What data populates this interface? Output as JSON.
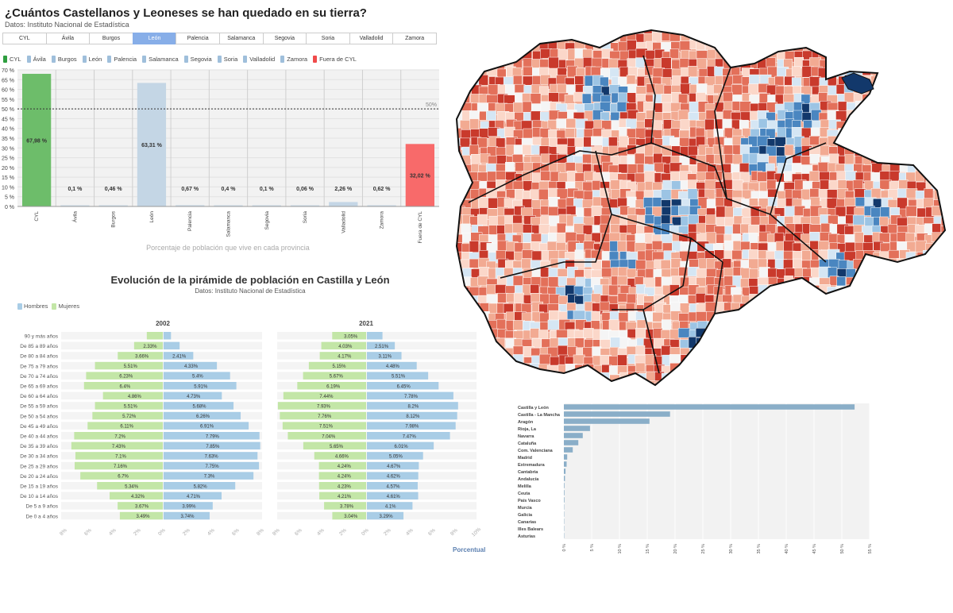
{
  "top": {
    "title": "¿Cuántos Castellanos y Leoneses se han quedado en su tierra?",
    "source": "Datos: Instituto Nacional de Estadística",
    "tabs": [
      "CYL",
      "Ávila",
      "Burgos",
      "León",
      "Palencia",
      "Salamanca",
      "Segovia",
      "Soria",
      "Valladolid",
      "Zamora"
    ],
    "active_tab": 3,
    "legend": [
      {
        "label": "CYL",
        "color": "#2e9e3f"
      },
      {
        "label": "Ávila",
        "color": "#9fbfdb"
      },
      {
        "label": "Burgos",
        "color": "#9fbfdb"
      },
      {
        "label": "León",
        "color": "#9fbfdb"
      },
      {
        "label": "Palencia",
        "color": "#9fbfdb"
      },
      {
        "label": "Salamanca",
        "color": "#9fbfdb"
      },
      {
        "label": "Segovia",
        "color": "#9fbfdb"
      },
      {
        "label": "Soria",
        "color": "#9fbfdb"
      },
      {
        "label": "Valladolid",
        "color": "#9fbfdb"
      },
      {
        "label": "Zamora",
        "color": "#9fbfdb"
      },
      {
        "label": "Fuera de CYL",
        "color": "#f04b4b"
      }
    ]
  },
  "pyramid": {
    "title": "Evolución de la pirámide de población en Castilla y León",
    "source": "Datos: Instituto Nacional de Estadística",
    "legend": [
      {
        "label": "Hombres",
        "color": "#a9cde6"
      },
      {
        "label": "Mujeres",
        "color": "#c3e6a7"
      }
    ],
    "logo": "Porcentual"
  },
  "map": {
    "colors": {
      "deep_red": "#c93a2c",
      "red": "#e3705a",
      "light_red": "#f2aa92",
      "pale_red": "#fbd7c9",
      "white": "#f5f5f5",
      "pale_blue": "#d5e6f4",
      "light_blue": "#9cc4e4",
      "blue": "#4a86c0",
      "dark_blue": "#12386b"
    }
  },
  "chart_data": [
    {
      "type": "bar",
      "title": "",
      "xlabel": "Porcentaje de población que vive en cada provincia",
      "ylabel": "",
      "categories": [
        "CYL",
        "Ávila",
        "Burgos",
        "León",
        "Palencia",
        "Salamanca",
        "Segovia",
        "Soria",
        "Valladolid",
        "Zamora",
        "Fuera de CYL"
      ],
      "values": [
        67.98,
        0.1,
        0.46,
        63.31,
        0.67,
        0.4,
        0.1,
        0.06,
        2.26,
        0.62,
        32.02
      ],
      "value_labels": [
        "67,98 %",
        "0,1 %",
        "0,46 %",
        "63,31 %",
        "0,67 %",
        "0,4 %",
        "0,1 %",
        "0,06 %",
        "2,26 %",
        "0,62 %",
        "32,02 %"
      ],
      "colors": [
        "#6dbd6a",
        "#c9d9e6",
        "#c9d9e6",
        "#c4d6e5",
        "#c9d9e6",
        "#c9d9e6",
        "#c9d9e6",
        "#c9d9e6",
        "#c4d6e5",
        "#c9d9e6",
        "#f86a6a"
      ],
      "ylim": [
        0,
        70
      ],
      "yticks": [
        "0 %",
        "5 %",
        "10 %",
        "15 %",
        "20 %",
        "25 %",
        "30 %",
        "35 %",
        "40 %",
        "45 %",
        "50 %",
        "55 %",
        "60 %",
        "65 %",
        "70 %"
      ],
      "reference_line": {
        "value": 50,
        "label": "50%"
      },
      "grid": true
    },
    {
      "type": "bar",
      "subtype": "population-pyramid",
      "panels": [
        "2002",
        "2021"
      ],
      "age_groups": [
        "90 y más años",
        "De 85 a 89 años",
        "De 80 a 84 años",
        "De 75 a 79 años",
        "De 70 a 74 años",
        "De 65 a 69 años",
        "De 60 a 64 años",
        "De 55 a 59 años",
        "De 50 a 54 años",
        "De 45 a 49 años",
        "De 40 a 44 años",
        "De 35 a 39 años",
        "De 30 a 34 años",
        "De 25 a 29 años",
        "De 20 a 24 años",
        "De 15 a 19 años",
        "De 10 a 14 años",
        "De 5 a 9 años",
        "De 0 a 4 años"
      ],
      "series": [
        {
          "name": "Mujeres",
          "panel": "2002",
          "values": [
            1.3,
            2.33,
            3.66,
            5.51,
            6.23,
            6.4,
            4.86,
            5.51,
            5.72,
            6.11,
            7.2,
            7.43,
            7.1,
            7.16,
            6.7,
            5.34,
            4.32,
            3.67,
            3.49
          ],
          "labels": [
            "",
            "2.33%",
            "3.66%",
            "5.51%",
            "6.23%",
            "6.4%",
            "4.86%",
            "5.51%",
            "5.72%",
            "6.11%",
            "7.2%",
            "7.43%",
            "7.1%",
            "7.16%",
            "6.7%",
            "5.34%",
            "4.32%",
            "3.67%",
            "3.49%"
          ]
        },
        {
          "name": "Hombres",
          "panel": "2002",
          "values": [
            0.6,
            1.3,
            2.41,
            4.33,
            5.4,
            5.91,
            4.73,
            5.68,
            6.26,
            6.91,
            7.79,
            7.85,
            7.63,
            7.75,
            7.3,
            5.82,
            4.71,
            3.99,
            3.74
          ],
          "labels": [
            "",
            "",
            "2.41%",
            "4.33%",
            "5.4%",
            "5.91%",
            "4.73%",
            "5.68%",
            "6.26%",
            "6.91%",
            "7.79%",
            "7.85%",
            "7.63%",
            "7.75%",
            "7.3%",
            "5.82%",
            "4.71%",
            "3.99%",
            "3.74%"
          ]
        },
        {
          "name": "Mujeres",
          "panel": "2021",
          "values": [
            3.05,
            4.03,
            4.17,
            5.15,
            5.67,
            6.19,
            7.44,
            7.93,
            7.76,
            7.51,
            7.04,
            5.65,
            4.66,
            4.24,
            4.24,
            4.23,
            4.21,
            3.78,
            3.04
          ],
          "labels": [
            "3.05%",
            "4.03%",
            "4.17%",
            "5.15%",
            "5.67%",
            "6.19%",
            "7.44%",
            "7.93%",
            "7.76%",
            "7.51%",
            "7.04%",
            "5.65%",
            "4.66%",
            "4.24%",
            "4.24%",
            "4.23%",
            "4.21%",
            "3.78%",
            "3.04%"
          ]
        },
        {
          "name": "Hombres",
          "panel": "2021",
          "values": [
            1.4,
            2.51,
            3.11,
            4.48,
            5.51,
            6.45,
            7.78,
            8.2,
            8.12,
            7.98,
            7.47,
            6.01,
            5.05,
            4.67,
            4.62,
            4.57,
            4.61,
            4.1,
            3.29
          ],
          "labels": [
            "",
            "2.51%",
            "3.11%",
            "4.48%",
            "5.51%",
            "6.45%",
            "7.78%",
            "8.2%",
            "8.12%",
            "7.98%",
            "7.47%",
            "6.01%",
            "5.05%",
            "4.67%",
            "4.62%",
            "4.57%",
            "4.61%",
            "4.1%",
            "3.29%"
          ]
        }
      ],
      "panel_label_positions": {
        "2002": "female",
        "2021": "female"
      },
      "xticks_2002": [
        "8%",
        "6%",
        "4%",
        "2%",
        "0%",
        "2%",
        "4%",
        "6%",
        "8%"
      ],
      "xticks_2021": [
        "8%",
        "6%",
        "4%",
        "2%",
        "0%",
        "2%",
        "4%",
        "6%",
        "8%",
        "10%"
      ],
      "xlim": [
        0,
        8
      ]
    },
    {
      "type": "bar",
      "orientation": "horizontal",
      "title": "",
      "categories": [
        "Castilla y León",
        "Castilla - La Mancha",
        "Aragón",
        "Rioja, La",
        "Navarra",
        "Cataluña",
        "Com. Valenciana",
        "Madrid",
        "Extremadura",
        "Cantabria",
        "Andalucía",
        "Melilla",
        "Ceuta",
        "País Vasco",
        "Murcia",
        "Galicia",
        "Canarias",
        "Illes Balears",
        "Asturias"
      ],
      "values": [
        52.3,
        19.1,
        15.4,
        4.7,
        3.4,
        2.6,
        1.6,
        0.6,
        0.5,
        0.3,
        0.2,
        0.1,
        0.1,
        0.1,
        0.05,
        0.05,
        0.05,
        0.03,
        0.02
      ],
      "xticks": [
        "0 %",
        "5 %",
        "10 %",
        "15 %",
        "20 %",
        "25 %",
        "30 %",
        "35 %",
        "40 %",
        "45 %",
        "50 %",
        "55 %"
      ],
      "xlim": [
        0,
        55
      ],
      "color": "#8aaec8",
      "grid": true
    }
  ]
}
